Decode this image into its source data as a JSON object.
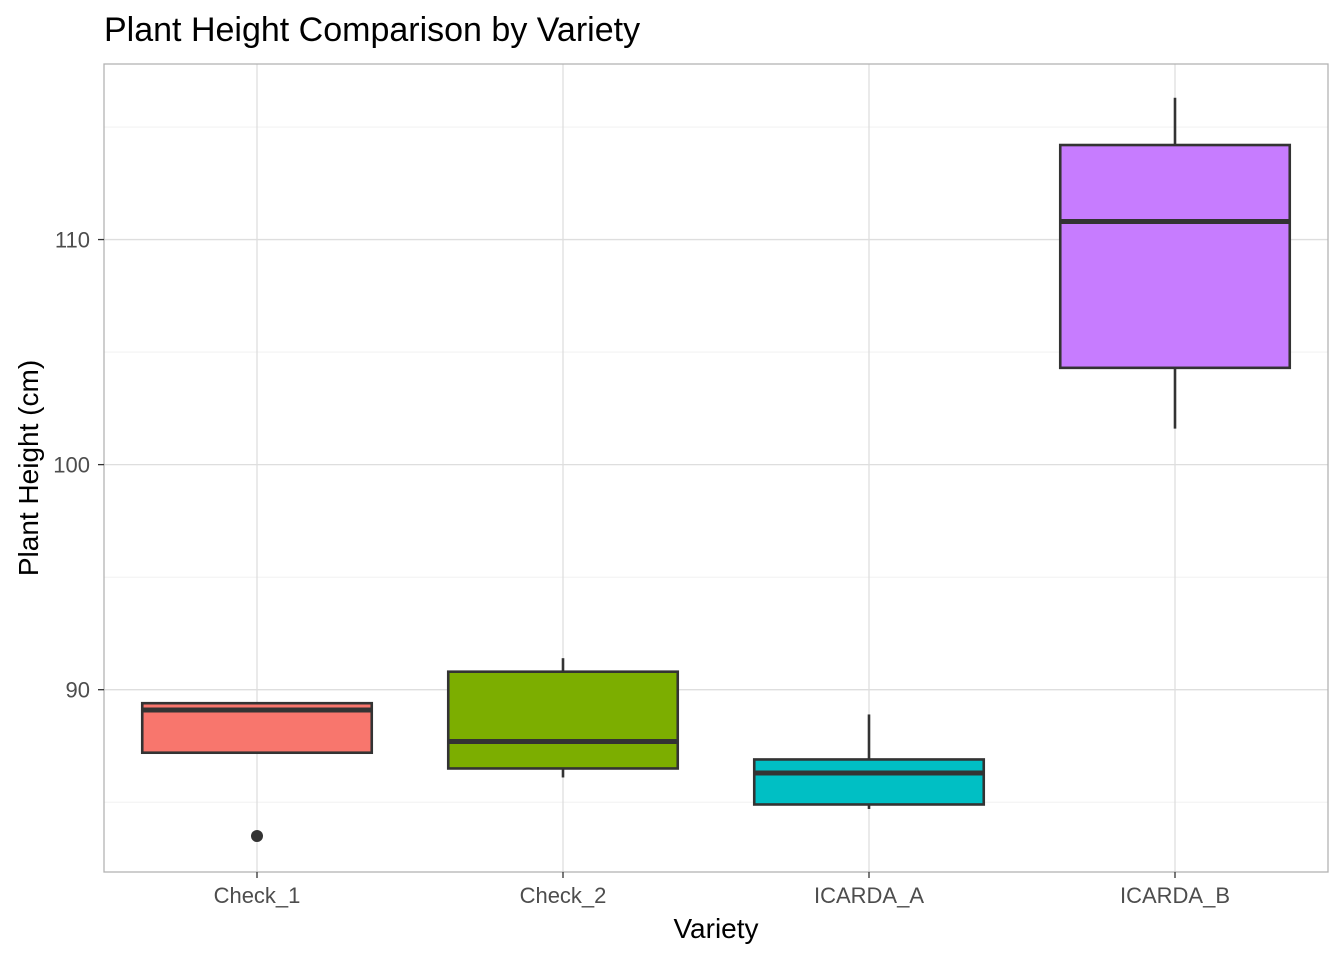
{
  "chart_data": {
    "type": "boxplot",
    "title": "Plant Height Comparison by Variety",
    "xlabel": "Variety",
    "ylabel": "Plant Height (cm)",
    "ylim": [
      81.9,
      117.8
    ],
    "y_major_ticks": [
      90,
      100,
      110
    ],
    "y_minor_ticks": [
      85,
      95,
      105,
      115
    ],
    "grid": true,
    "legend": "none",
    "categories": [
      "Check_1",
      "Check_2",
      "ICARDA_A",
      "ICARDA_B"
    ],
    "boxes": [
      {
        "category": "Check_1",
        "whisker_low": 87.2,
        "q1": 87.2,
        "median": 89.1,
        "q3": 89.4,
        "whisker_high": 89.4,
        "outliers": [
          83.5
        ],
        "color": "#F8766D"
      },
      {
        "category": "Check_2",
        "whisker_low": 86.1,
        "q1": 86.5,
        "median": 87.7,
        "q3": 90.8,
        "whisker_high": 91.4,
        "outliers": [],
        "color": "#7CAE00"
      },
      {
        "category": "ICARDA_A",
        "whisker_low": 84.7,
        "q1": 84.9,
        "median": 86.3,
        "q3": 86.9,
        "whisker_high": 88.9,
        "outliers": [],
        "color": "#00BFC4"
      },
      {
        "category": "ICARDA_B",
        "whisker_low": 101.6,
        "q1": 104.3,
        "median": 110.8,
        "q3": 114.2,
        "whisker_high": 116.3,
        "outliers": [],
        "color": "#C77CFF"
      }
    ]
  }
}
